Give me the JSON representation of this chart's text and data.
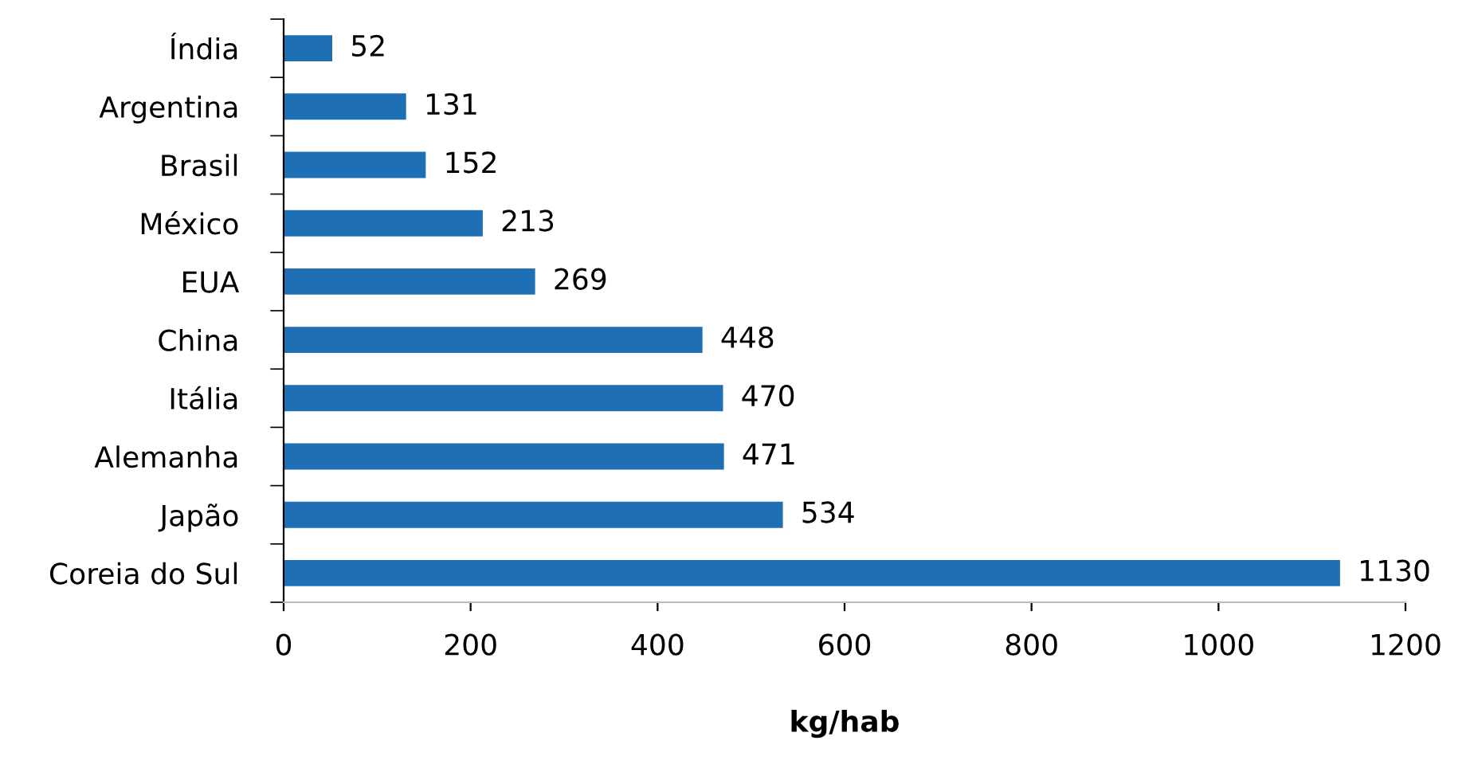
{
  "chart_data": {
    "type": "bar",
    "orientation": "horizontal",
    "categories": [
      "Índia",
      "Argentina",
      "Brasil",
      "México",
      "EUA",
      "China",
      "Itália",
      "Alemanha",
      "Japão",
      "Coreia do Sul"
    ],
    "values": [
      52,
      131,
      152,
      213,
      269,
      448,
      470,
      471,
      534,
      1130
    ],
    "color": "#1f6fb4",
    "xlabel": "kg/hab",
    "xlim": [
      0,
      1200
    ],
    "xticks": [
      0,
      200,
      400,
      600,
      800,
      1000,
      1200
    ],
    "data_labels": true,
    "grid": false,
    "legend": false
  }
}
